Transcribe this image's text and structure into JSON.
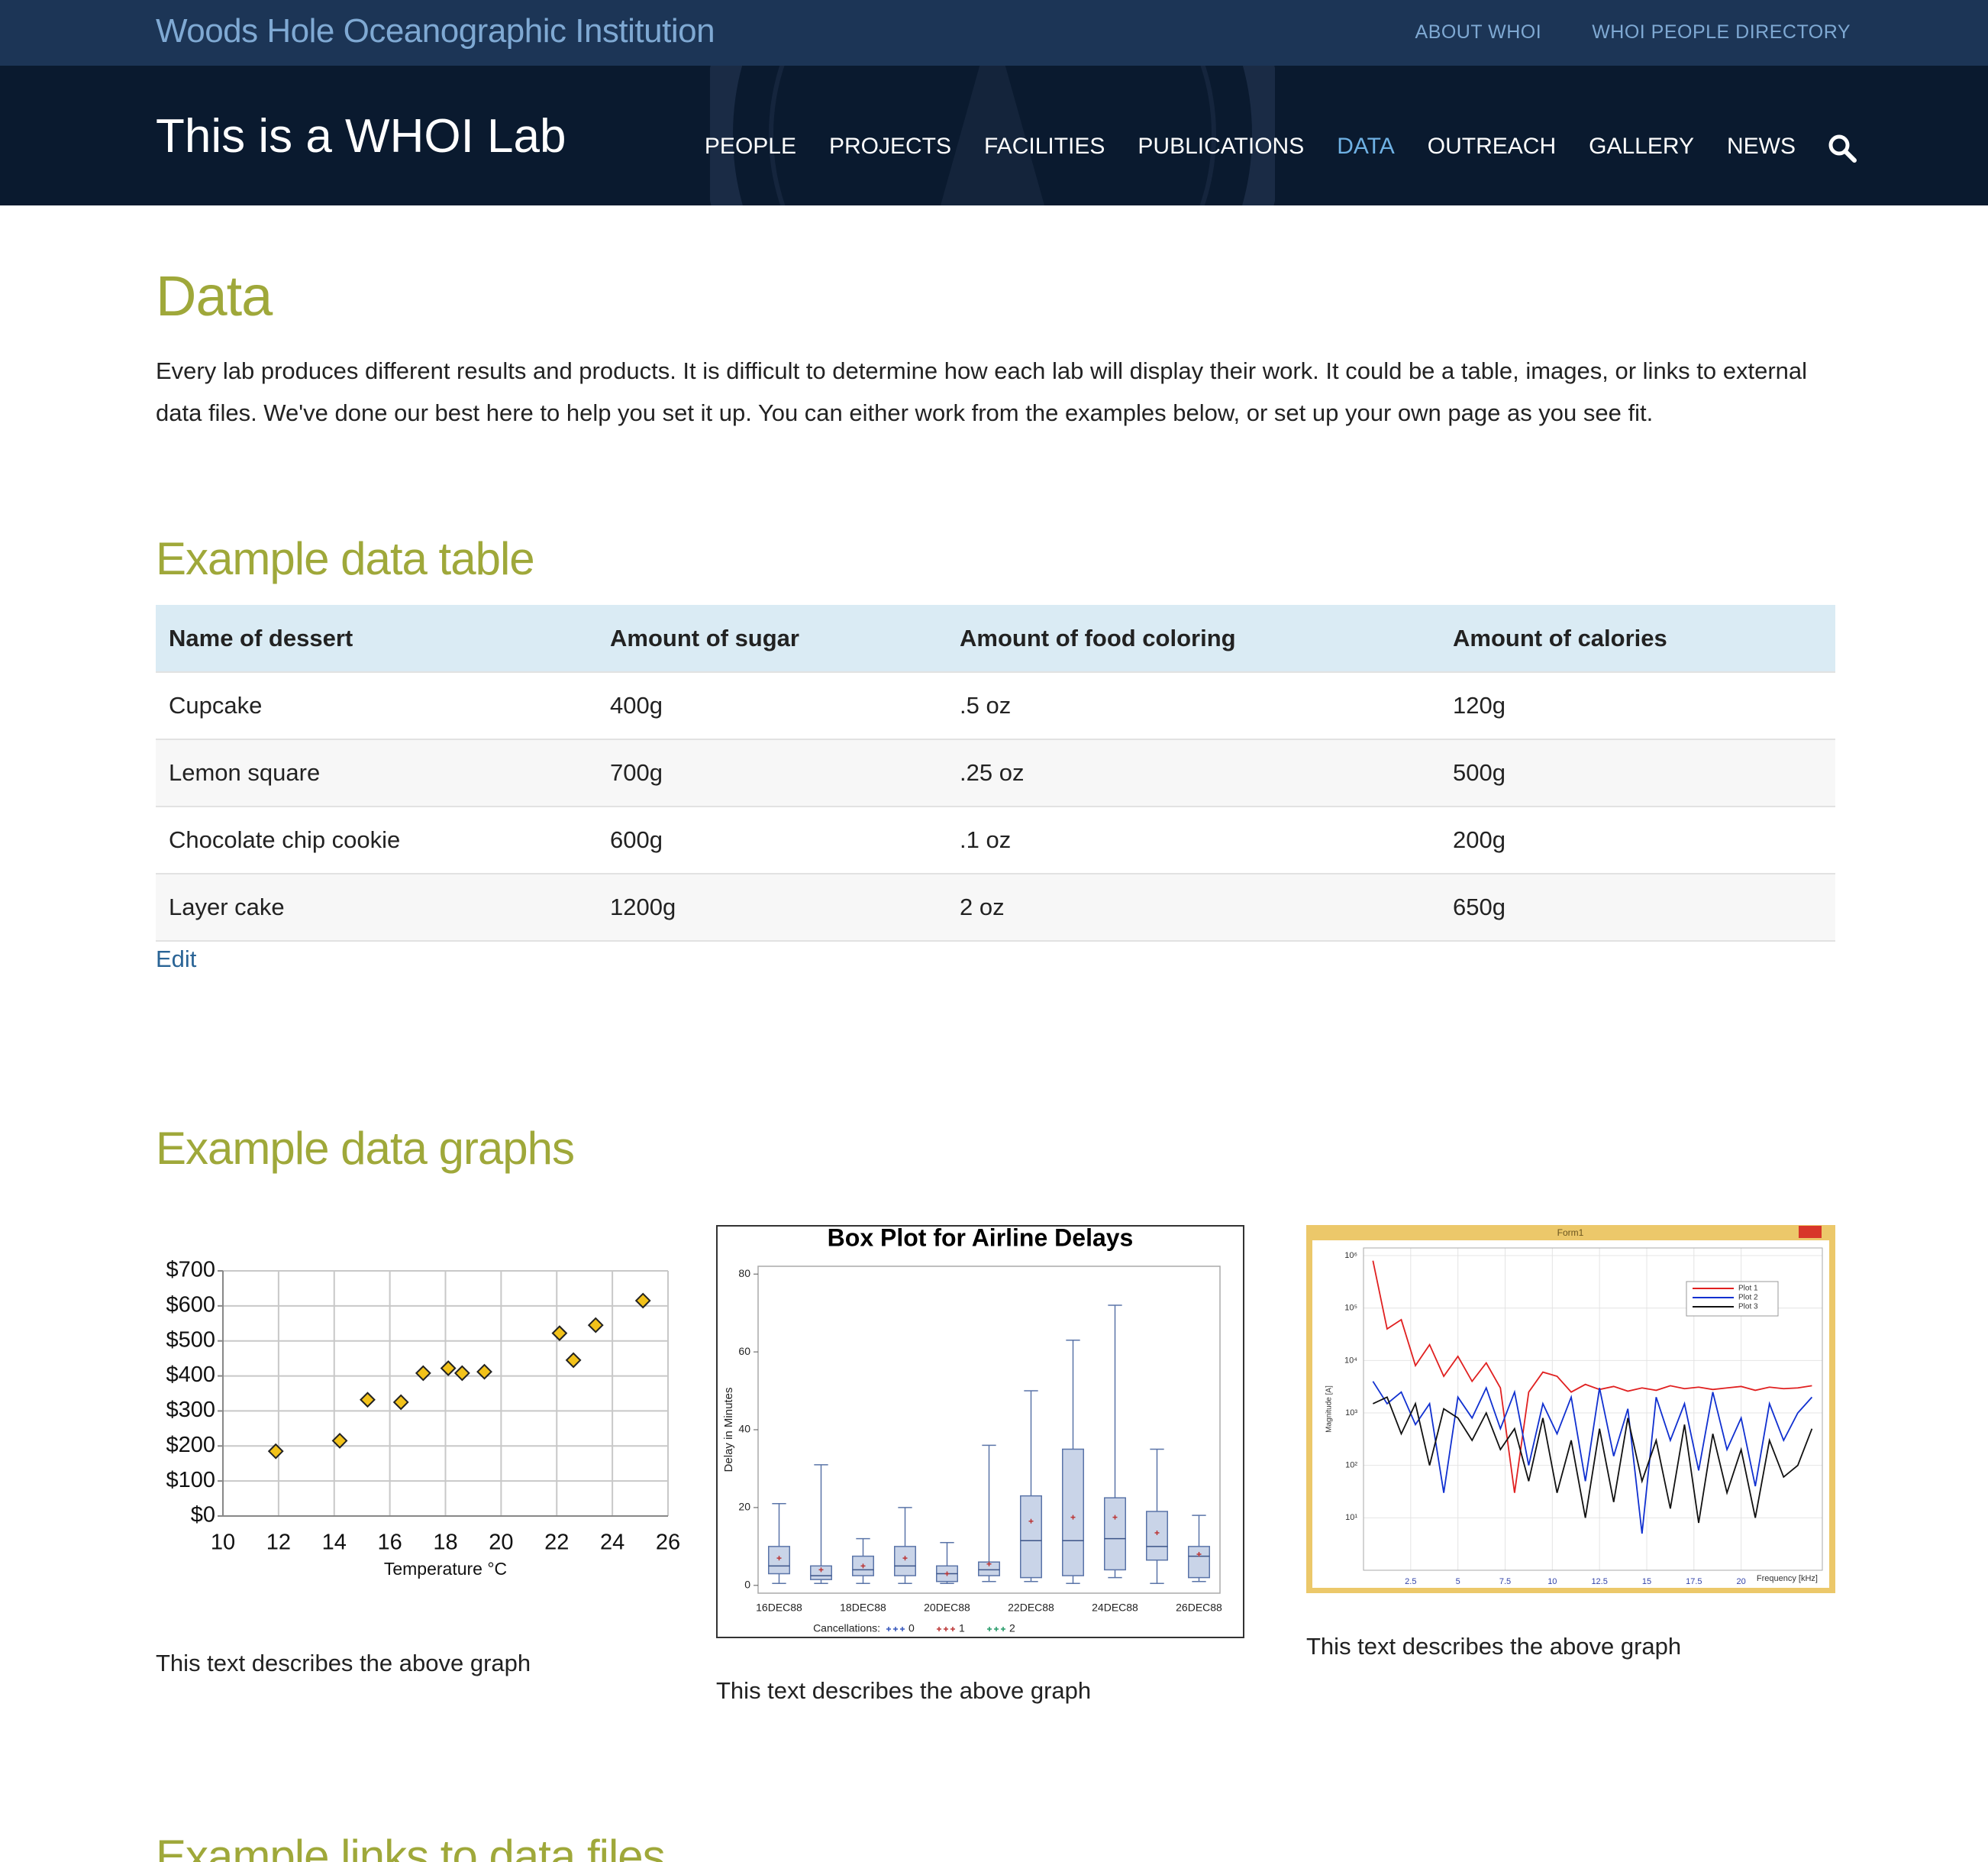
{
  "top_bar": {
    "site_name": "Woods Hole Oceanographic Institution",
    "links": [
      "ABOUT WHOI",
      "WHOI PEOPLE DIRECTORY"
    ]
  },
  "header": {
    "title": "This is a WHOI Lab",
    "nav": [
      "PEOPLE",
      "PROJECTS",
      "FACILITIES",
      "PUBLICATIONS",
      "DATA",
      "OUTREACH",
      "GALLERY",
      "NEWS"
    ],
    "nav_active": 4
  },
  "content": {
    "title": "Data",
    "intro": "Every lab produces different results and products. It is difficult to determine how each lab will display their work. It could be a table, images, or links to external data files. We've done our best here to help you set it up. You can either work from the examples below, or set up your own page as you see fit.",
    "table_heading": "Example data table",
    "table": {
      "header": [
        "Name of dessert",
        "Amount of sugar",
        "Amount of food coloring",
        "Amount of calories"
      ],
      "rows": [
        [
          "Cupcake",
          "400g",
          ".5 oz",
          "120g"
        ],
        [
          "Lemon square",
          "700g",
          ".25 oz",
          "500g"
        ],
        [
          "Chocolate chip cookie",
          "600g",
          ".1 oz",
          "200g"
        ],
        [
          "Layer cake",
          "1200g",
          "2 oz",
          "650g"
        ]
      ]
    },
    "edit_link": "Edit",
    "graphs_heading": "Example data graphs",
    "links_heading": "Example links to data files"
  },
  "chart_data": [
    {
      "type": "scatter",
      "caption": "This text describes the above graph",
      "x_label": "Temperature °C",
      "x": [
        11.9,
        14.2,
        15.2,
        16.4,
        17.2,
        18.1,
        18.6,
        19.4,
        22.1,
        22.6,
        23.4,
        25.1
      ],
      "values": [
        185,
        215,
        332,
        325,
        408,
        422,
        408,
        412,
        522,
        445,
        545,
        615
      ],
      "color": "#f2c21a",
      "xlim": [
        10,
        26
      ],
      "xticks": [
        10,
        12,
        14,
        16,
        18,
        20,
        22,
        24,
        26
      ],
      "ylim": [
        0,
        700
      ],
      "yticks": [
        {
          "value": 0,
          "label": "$0"
        },
        {
          "value": 100,
          "label": "$100"
        },
        {
          "value": 200,
          "label": "$200"
        },
        {
          "value": 300,
          "label": "$300"
        },
        {
          "value": 400,
          "label": "$400"
        },
        {
          "value": 500,
          "label": "$500"
        },
        {
          "value": 600,
          "label": "$600"
        },
        {
          "value": 700,
          "label": "$700"
        }
      ],
      "grid": true
    },
    {
      "type": "box",
      "caption": "This text describes the above graph",
      "title": "Box Plot for Airline Delays",
      "y_label": "Delay in Minutes",
      "categories": [
        "16DEC88",
        null,
        "18DEC88",
        null,
        "20DEC88",
        null,
        "22DEC88",
        null,
        "24DEC88",
        null,
        "26DEC88"
      ],
      "boxes": [
        {
          "min": 0.5,
          "q1": 3,
          "median": 5,
          "q3": 10,
          "max": 21,
          "mean": 7
        },
        {
          "min": 0.5,
          "q1": 1.5,
          "median": 2.5,
          "q3": 5,
          "max": 31,
          "mean": 4
        },
        {
          "min": 0.5,
          "q1": 2.5,
          "median": 4,
          "q3": 7.5,
          "max": 12,
          "mean": 5
        },
        {
          "min": 0.5,
          "q1": 2.5,
          "median": 5,
          "q3": 10,
          "max": 20,
          "mean": 7
        },
        {
          "min": 0.5,
          "q1": 1,
          "median": 3,
          "q3": 5,
          "max": 11,
          "mean": 3
        },
        {
          "min": 1,
          "q1": 2.5,
          "median": 4,
          "q3": 6,
          "max": 36,
          "mean": 5.5
        },
        {
          "min": 1,
          "q1": 2,
          "median": 11.5,
          "q3": 23,
          "max": 50,
          "mean": 16.5
        },
        {
          "min": 0.5,
          "q1": 2.5,
          "median": 11.5,
          "q3": 35,
          "max": 63,
          "mean": 17.5
        },
        {
          "min": 2,
          "q1": 4,
          "median": 12,
          "q3": 22.5,
          "max": 72,
          "mean": 17.5
        },
        {
          "min": 0.5,
          "q1": 6.5,
          "median": 10,
          "q3": 19,
          "max": 35,
          "mean": 13.5
        },
        {
          "min": 1,
          "q1": 2,
          "median": 7.5,
          "q3": 10,
          "max": 18,
          "mean": 8
        }
      ],
      "color": "#c9d4e8",
      "ylim": [
        -2,
        82
      ],
      "yticks": [
        0,
        20,
        40,
        60,
        80
      ],
      "legend_title": "Cancellations:",
      "legend": [
        {
          "name": "0",
          "color": "#3355bb"
        },
        {
          "name": "1",
          "color": "#bb3333"
        },
        {
          "name": "2",
          "color": "#229966"
        }
      ]
    },
    {
      "type": "line",
      "caption": "This text describes the above graph",
      "window_title": "Form1",
      "x_label": "Frequency [kHz]",
      "y_label": "Magnitude [A]",
      "log_y": true,
      "grid": true,
      "legend_position": "upper right",
      "x": [
        0.5,
        1.25,
        2,
        2.75,
        3.5,
        4.25,
        5,
        5.75,
        6.5,
        7.25,
        8,
        8.75,
        9.5,
        10.25,
        11,
        11.75,
        12.5,
        13.25,
        14,
        14.75,
        15.5,
        16.25,
        17,
        17.75,
        18.5,
        19.25,
        20,
        20.75,
        21.5,
        22.25,
        23,
        23.75
      ],
      "series": [
        {
          "name": "Plot 1",
          "color": "#e02020",
          "values": [
            800000,
            40000,
            60000,
            8000,
            20000,
            5000,
            12000,
            4000,
            9000,
            3000,
            30,
            2500,
            6000,
            5000,
            2500,
            3500,
            2800,
            3200,
            2600,
            3000,
            2700,
            3300,
            2900,
            3100,
            2800,
            3000,
            3200,
            2700,
            3100,
            2900,
            3000,
            3300
          ]
        },
        {
          "name": "Plot 2",
          "color": "#1030d0",
          "values": [
            4000,
            1500,
            2500,
            600,
            1500,
            30,
            2000,
            800,
            3000,
            500,
            2500,
            100,
            1500,
            400,
            2000,
            50,
            3000,
            150,
            1200,
            5,
            2000,
            300,
            1500,
            80,
            2500,
            200,
            800,
            40,
            1500,
            300,
            1000,
            2000
          ]
        },
        {
          "name": "Plot 3",
          "color": "#111111",
          "values": [
            1500,
            2000,
            400,
            1500,
            100,
            1200,
            800,
            300,
            1000,
            200,
            500,
            50,
            800,
            30,
            300,
            10,
            500,
            20,
            800,
            50,
            300,
            15,
            600,
            8,
            400,
            30,
            200,
            10,
            300,
            60,
            100,
            500
          ]
        }
      ],
      "xlim": [
        0,
        24.3
      ],
      "xticks": [
        2.5,
        5,
        7.5,
        10,
        12.5,
        15,
        17.5,
        20
      ],
      "ylim": [
        1,
        1400000
      ],
      "yticks": [
        {
          "value": 10,
          "label": "10¹"
        },
        {
          "value": 100,
          "label": "10²"
        },
        {
          "value": 1000,
          "label": "10³"
        },
        {
          "value": 10000,
          "label": "10⁴"
        },
        {
          "value": 100000,
          "label": "10⁵"
        },
        {
          "value": 1000000,
          "label": "10⁶"
        }
      ]
    }
  ]
}
